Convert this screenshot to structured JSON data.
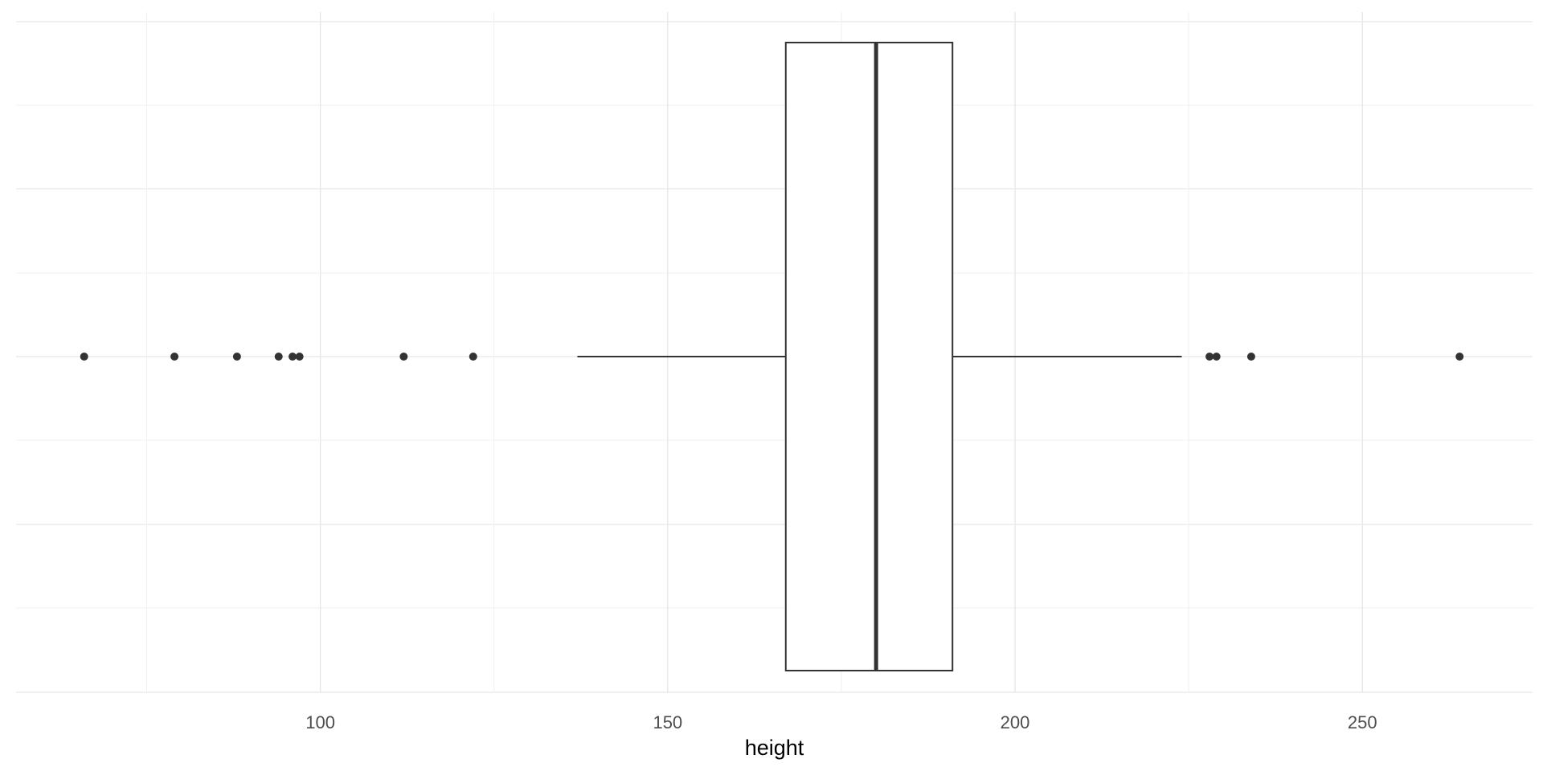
{
  "chart_data": {
    "type": "boxplot",
    "orientation": "horizontal",
    "title": "",
    "xlabel": "height",
    "ylabel": "",
    "xlim": [
      56.2,
      274.5
    ],
    "x_ticks": [
      100,
      150,
      200,
      250
    ],
    "x_tick_labels": [
      "100",
      "150",
      "200",
      "250"
    ],
    "x_minor_ticks": [
      75,
      125,
      175,
      225
    ],
    "grid": true,
    "legend": "none",
    "box": {
      "whisker_low": 137,
      "q1": 167,
      "median": 180,
      "q3": 191,
      "whisker_high": 224
    },
    "outliers": [
      66,
      79,
      88,
      94,
      96,
      97,
      112,
      122,
      228,
      229,
      234,
      264
    ],
    "colors": {
      "box_fill": "#ffffff",
      "line": "#333333",
      "grid_major": "#e6e6e6",
      "grid_minor": "#f0f0f0",
      "tick_text": "#4d4d4d",
      "title_text": "#000000"
    }
  }
}
